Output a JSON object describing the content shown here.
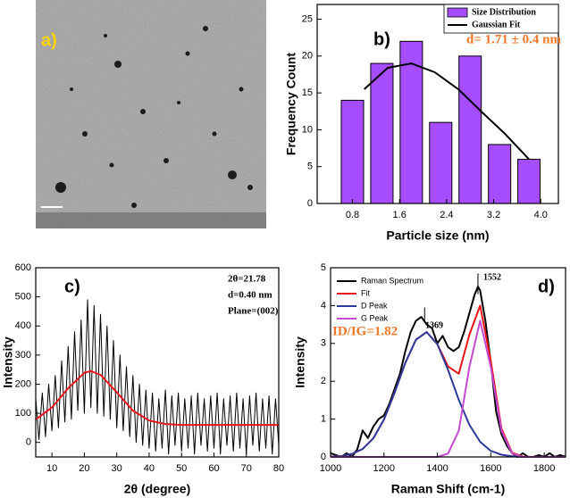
{
  "chart_data": [
    {
      "type": "image",
      "label": "a)"
    },
    {
      "type": "bar",
      "label": "b)",
      "xlabel": "Particle size (nm)",
      "ylabel": "Frequency Count",
      "xlim": [
        0.2,
        4.3
      ],
      "xticks": [
        0.8,
        1.6,
        2.4,
        3.2,
        {
          "value": 4,
          "label": "4.0"
        }
      ],
      "ylim": [
        0,
        27
      ],
      "yticks": [
        0,
        5,
        10,
        15,
        20,
        25
      ],
      "legend": "upper-right",
      "annotations": [
        "d= 1.71 ± 0.4 nm"
      ],
      "series": [
        {
          "name": "Size Distribution",
          "type": "bar",
          "color": "#a64dff",
          "x": [
            0.8,
            1.3,
            1.8,
            2.3,
            2.8,
            3.3,
            3.8
          ],
          "values": [
            14,
            19,
            22,
            11,
            20,
            8,
            6
          ]
        },
        {
          "name": "Gaussian Fit",
          "type": "line",
          "color": "#000000",
          "x": [
            1.0,
            1.4,
            1.8,
            2.2,
            2.6,
            3.0,
            3.4,
            3.8
          ],
          "values": [
            15.5,
            18.4,
            19,
            17.8,
            15.5,
            12.4,
            9.4,
            6
          ]
        }
      ]
    },
    {
      "type": "line",
      "label": "c)",
      "xlabel": "2θ (degree)",
      "ylabel": "Intensity",
      "xlim": [
        5,
        80
      ],
      "xticks": [
        10,
        20,
        30,
        40,
        50,
        60,
        70,
        80
      ],
      "ylim": [
        -50,
        600
      ],
      "yticks": [
        0,
        100,
        200,
        300,
        400,
        500,
        600
      ],
      "annotations": [
        "2θ=21.78",
        "d=0.40 nm",
        "Plane=(002)"
      ],
      "series": [
        {
          "type": "line",
          "color": "#000000",
          "x": [
            5,
            6,
            7,
            8,
            9,
            10,
            11,
            12,
            13,
            14,
            15,
            16,
            17,
            18,
            19,
            20,
            21,
            22,
            23,
            24,
            25,
            26,
            27,
            28,
            29,
            30,
            31,
            32,
            33,
            34,
            35,
            36,
            37,
            38,
            39,
            40,
            41,
            42,
            43,
            44,
            45,
            46,
            47,
            48,
            49,
            50,
            51,
            52,
            53,
            54,
            55,
            56,
            57,
            58,
            59,
            60,
            61,
            62,
            63,
            64,
            65,
            66,
            67,
            68,
            69,
            70,
            71,
            72,
            73,
            74,
            75,
            76,
            77,
            78,
            79,
            80
          ],
          "values": [
            150,
            10,
            170,
            20,
            200,
            40,
            230,
            50,
            280,
            70,
            330,
            80,
            380,
            110,
            420,
            100,
            490,
            120,
            470,
            100,
            440,
            90,
            400,
            80,
            350,
            50,
            300,
            40,
            260,
            20,
            230,
            0,
            200,
            -10,
            180,
            -20,
            170,
            -30,
            150,
            -20,
            180,
            -40,
            160,
            -10,
            170,
            -30,
            150,
            -20,
            160,
            -40,
            170,
            -10,
            150,
            -30,
            160,
            -20,
            170,
            -40,
            150,
            -10,
            160,
            -30,
            170,
            -20,
            150,
            -40,
            160,
            -10,
            170,
            -30,
            150,
            -20,
            160,
            -40,
            150,
            -10
          ]
        },
        {
          "type": "line",
          "color": "#e8141a",
          "x": [
            5,
            10,
            15,
            20,
            22,
            25,
            30,
            35,
            40,
            45,
            50,
            55,
            60,
            65,
            70,
            75,
            80
          ],
          "values": [
            79,
            120,
            186,
            239,
            245,
            232,
            172,
            109,
            75,
            63,
            60,
            60,
            60,
            60,
            60,
            60,
            60
          ]
        }
      ]
    },
    {
      "type": "line",
      "label": "d)",
      "xlabel": "Raman Shift (cm-1)",
      "ylabel": "Intensity",
      "xlim": [
        1000,
        1880
      ],
      "xticks": [
        1000,
        1200,
        1400,
        1600,
        1800
      ],
      "ylim": [
        0,
        5
      ],
      "yticks": [
        0,
        1,
        2,
        3,
        4,
        5
      ],
      "legend": "upper-left",
      "annotations": [
        "1369",
        "1552",
        "ID/IG=1.82"
      ],
      "series": [
        {
          "name": "Raman Spectrum",
          "type": "line",
          "color": "#000000",
          "x": [
            1000,
            1020,
            1040,
            1060,
            1080,
            1100,
            1120,
            1140,
            1160,
            1180,
            1200,
            1220,
            1240,
            1260,
            1280,
            1300,
            1320,
            1340,
            1360,
            1380,
            1400,
            1420,
            1440,
            1460,
            1480,
            1500,
            1520,
            1540,
            1552,
            1560,
            1580,
            1600,
            1620,
            1640,
            1660,
            1680,
            1700,
            1720,
            1740,
            1760,
            1780,
            1800,
            1820,
            1840,
            1860,
            1880
          ],
          "values": [
            0.1,
            0.05,
            0,
            0.1,
            0,
            0.2,
            0.7,
            0.5,
            0.8,
            1.0,
            1.1,
            1.4,
            1.8,
            2.2,
            2.8,
            3.3,
            3.6,
            3.7,
            3.5,
            3.4,
            3.0,
            3.2,
            2.9,
            2.8,
            2.9,
            3.3,
            3.8,
            4.3,
            4.5,
            4.4,
            3.6,
            2.5,
            1.2,
            0.6,
            0.3,
            0.1,
            0,
            0.1,
            0,
            0,
            0.05,
            0,
            0.1,
            0,
            0.05,
            0
          ]
        },
        {
          "name": "Fit",
          "type": "line",
          "color": "#e8141a",
          "x": [
            1000,
            1040,
            1080,
            1120,
            1160,
            1200,
            1240,
            1280,
            1320,
            1360,
            1400,
            1440,
            1480,
            1520,
            1560,
            1600,
            1640,
            1680,
            1720,
            1760,
            1800,
            1840,
            1880
          ],
          "values": [
            0.01,
            0.02,
            0.08,
            0.21,
            0.49,
            0.99,
            1.7,
            2.49,
            3.1,
            3.3,
            2.98,
            2.39,
            2.2,
            3.23,
            4.0,
            2.54,
            0.75,
            0.11,
            0.01,
            0,
            0,
            0,
            0
          ]
        },
        {
          "name": "D Peak",
          "type": "line",
          "color": "#2b3a9c",
          "x": [
            1000,
            1040,
            1080,
            1120,
            1160,
            1200,
            1240,
            1280,
            1320,
            1360,
            1400,
            1440,
            1480,
            1520,
            1560,
            1600,
            1640,
            1680,
            1720,
            1760,
            1800,
            1840,
            1880
          ],
          "values": [
            0.01,
            0.02,
            0.08,
            0.21,
            0.49,
            0.99,
            1.7,
            2.49,
            3.1,
            3.3,
            2.98,
            2.3,
            1.51,
            0.85,
            0.4,
            0.16,
            0.06,
            0.02,
            0,
            0,
            0,
            0,
            0
          ]
        },
        {
          "name": "G Peak",
          "type": "line",
          "color": "#c34ad1",
          "x": [
            1000,
            1040,
            1080,
            1120,
            1160,
            1200,
            1240,
            1280,
            1320,
            1360,
            1400,
            1440,
            1480,
            1520,
            1560,
            1600,
            1640,
            1680,
            1720,
            1760,
            1800,
            1840,
            1880
          ],
          "values": [
            0,
            0,
            0,
            0,
            0,
            0,
            0,
            0,
            0,
            0,
            0,
            0.09,
            0.69,
            2.38,
            3.6,
            2.38,
            0.69,
            0.09,
            0,
            0,
            0,
            0,
            0
          ]
        }
      ]
    }
  ]
}
